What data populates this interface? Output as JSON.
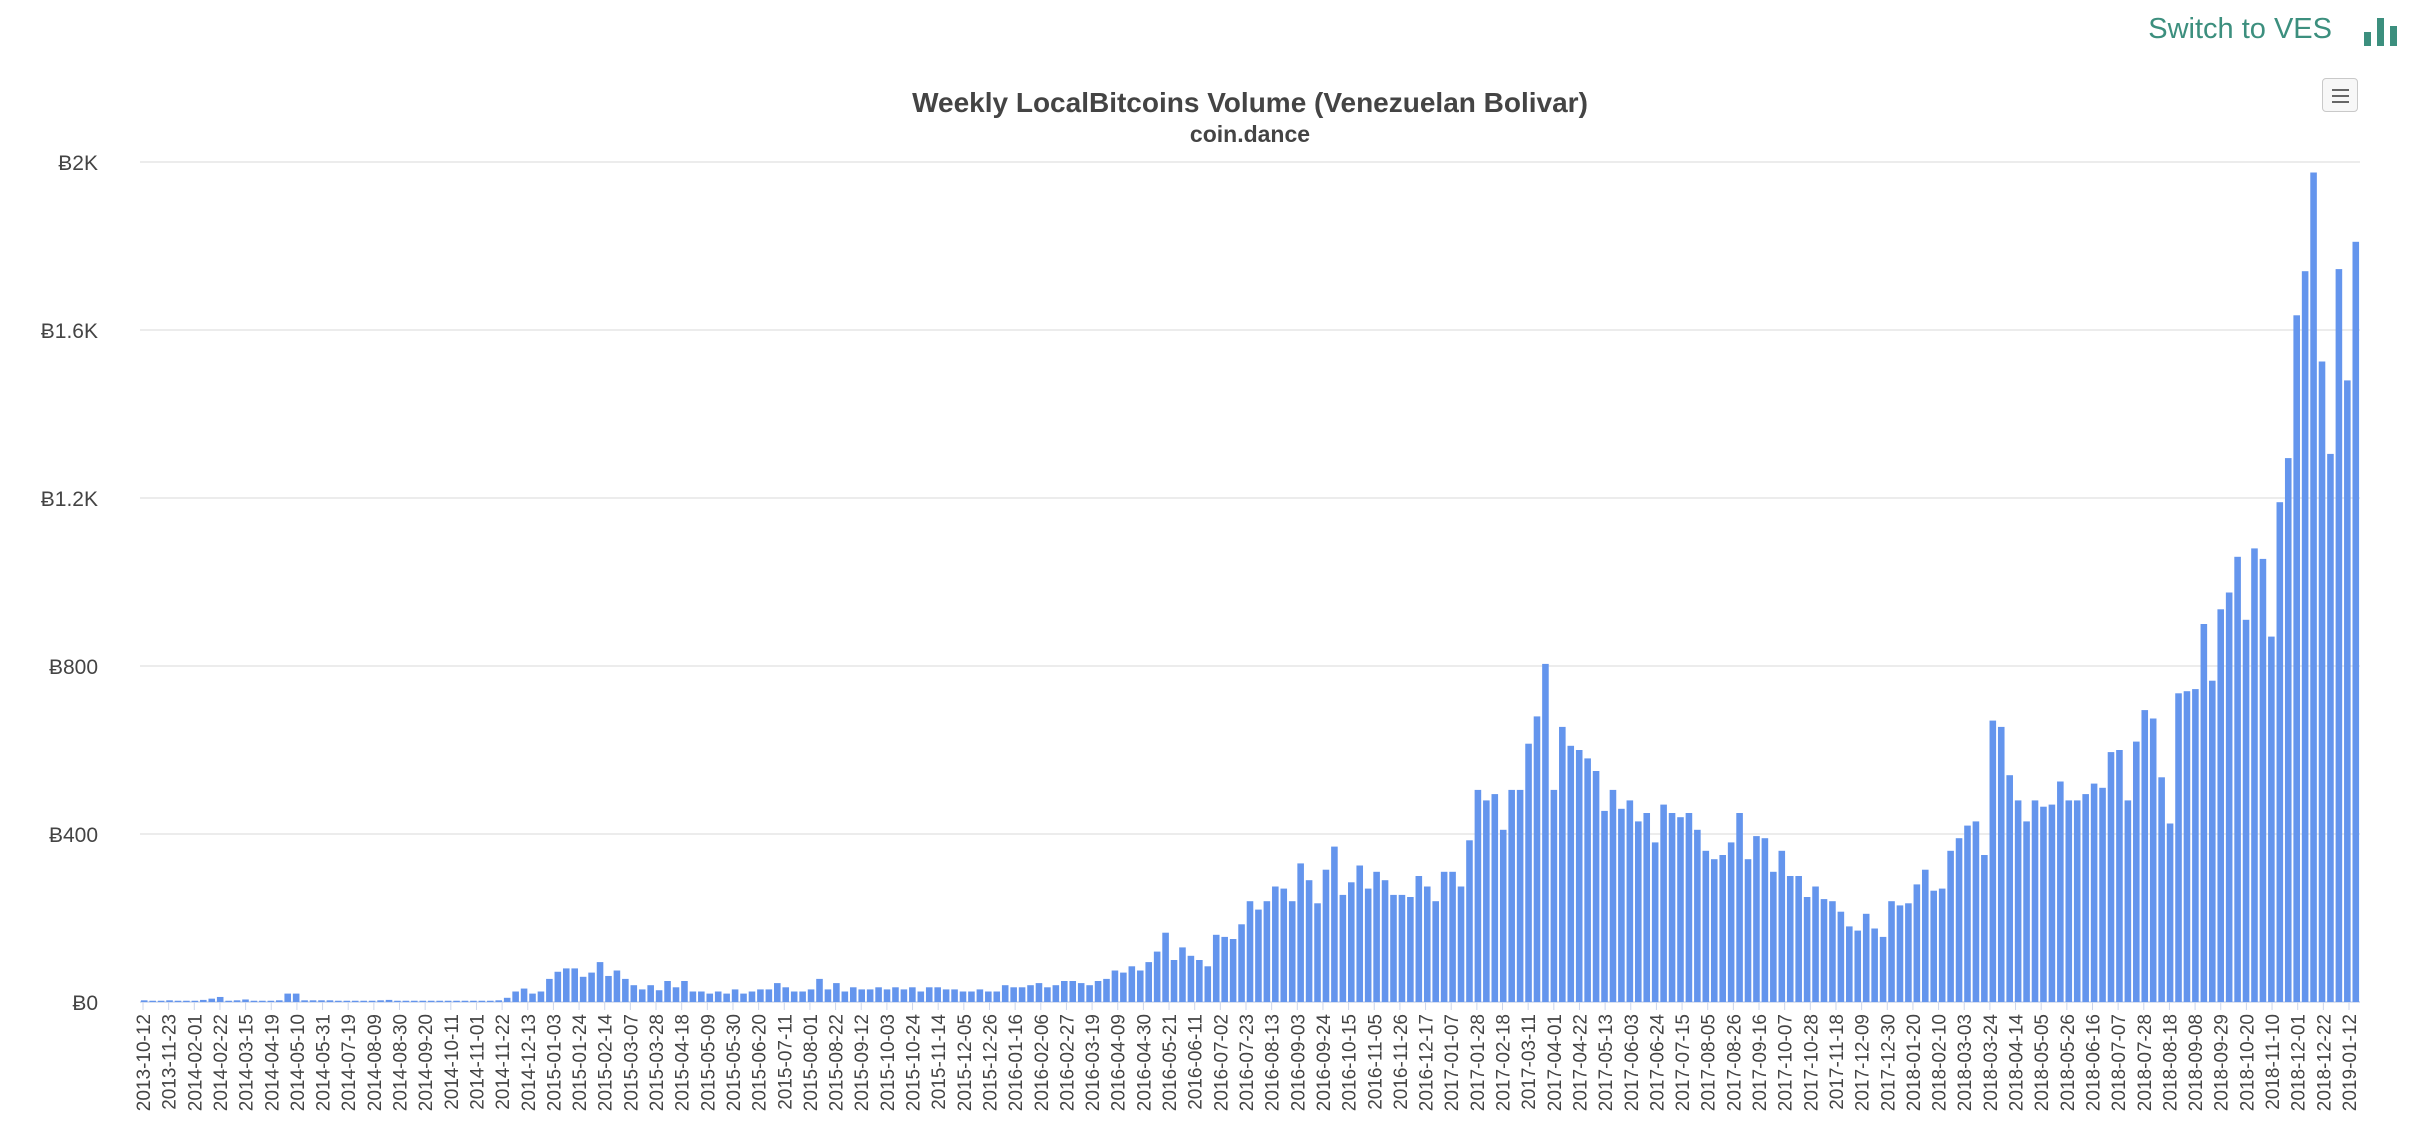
{
  "header": {
    "switch_label": "Switch to VES",
    "switch_icon": "bar-chart-icon",
    "accent_color": "#3c8f7e"
  },
  "chart_menu": {
    "icon": "hamburger-menu-icon"
  },
  "chart_data": {
    "type": "bar",
    "title": "Weekly LocalBitcoins Volume (Venezuelan Bolivar)",
    "subtitle": "coin.dance",
    "xlabel": "",
    "ylabel": "",
    "ylim": [
      0,
      2000
    ],
    "y_ticks": [
      0,
      400,
      800,
      1200,
      1600,
      2000
    ],
    "y_tick_labels": [
      "Ƀ0",
      "Ƀ400",
      "Ƀ800",
      "Ƀ1.2K",
      "Ƀ1.6K",
      "Ƀ2K"
    ],
    "grid": true,
    "bar_color": "#6495ed",
    "x_tick_labels": [
      "2013-10-12",
      "2013-11-23",
      "2014-02-01",
      "2014-02-22",
      "2014-03-15",
      "2014-04-19",
      "2014-05-10",
      "2014-05-31",
      "2014-07-19",
      "2014-08-09",
      "2014-08-30",
      "2014-09-20",
      "2014-10-11",
      "2014-11-01",
      "2014-11-22",
      "2014-12-13",
      "2015-01-03",
      "2015-01-24",
      "2015-02-14",
      "2015-03-07",
      "2015-03-28",
      "2015-04-18",
      "2015-05-09",
      "2015-05-30",
      "2015-06-20",
      "2015-07-11",
      "2015-08-01",
      "2015-08-22",
      "2015-09-12",
      "2015-10-03",
      "2015-10-24",
      "2015-11-14",
      "2015-12-05",
      "2015-12-26",
      "2016-01-16",
      "2016-02-06",
      "2016-02-27",
      "2016-03-19",
      "2016-04-09",
      "2016-04-30",
      "2016-05-21",
      "2016-06-11",
      "2016-07-02",
      "2016-07-23",
      "2016-08-13",
      "2016-09-03",
      "2016-09-24",
      "2016-10-15",
      "2016-11-05",
      "2016-11-26",
      "2016-12-17",
      "2017-01-07",
      "2017-01-28",
      "2017-02-18",
      "2017-03-11",
      "2017-04-01",
      "2017-04-22",
      "2017-05-13",
      "2017-06-03",
      "2017-06-24",
      "2017-07-15",
      "2017-08-05",
      "2017-08-26",
      "2017-09-16",
      "2017-10-07",
      "2017-10-28",
      "2017-11-18",
      "2017-12-09",
      "2017-12-30",
      "2018-01-20",
      "2018-02-10",
      "2018-03-03",
      "2018-03-24",
      "2018-04-14",
      "2018-05-05",
      "2018-05-26",
      "2018-06-16",
      "2018-07-07",
      "2018-07-28",
      "2018-08-18",
      "2018-09-08",
      "2018-09-29",
      "2018-10-20",
      "2018-11-10",
      "2018-12-01",
      "2018-12-22",
      "2019-01-12"
    ],
    "values": [
      4,
      3,
      3,
      4,
      3,
      3,
      3,
      5,
      8,
      12,
      3,
      4,
      6,
      3,
      3,
      3,
      4,
      20,
      20,
      4,
      4,
      4,
      4,
      3,
      3,
      3,
      3,
      3,
      4,
      5,
      3,
      3,
      3,
      3,
      3,
      3,
      3,
      3,
      3,
      3,
      3,
      3,
      4,
      10,
      25,
      32,
      20,
      25,
      55,
      72,
      80,
      80,
      60,
      70,
      95,
      62,
      75,
      55,
      40,
      30,
      40,
      28,
      50,
      35,
      50,
      25,
      25,
      20,
      25,
      20,
      30,
      20,
      25,
      30,
      30,
      45,
      35,
      25,
      25,
      30,
      55,
      30,
      45,
      25,
      35,
      30,
      30,
      35,
      30,
      35,
      30,
      35,
      25,
      35,
      35,
      30,
      30,
      25,
      25,
      30,
      25,
      25,
      40,
      35,
      35,
      40,
      45,
      35,
      40,
      50,
      50,
      45,
      40,
      50,
      55,
      75,
      70,
      85,
      75,
      95,
      120,
      165,
      100,
      130,
      110,
      100,
      85,
      160,
      155,
      150,
      185,
      240,
      220,
      240,
      275,
      270,
      240,
      330,
      290,
      235,
      315,
      370,
      255,
      285,
      325,
      270,
      310,
      290,
      255,
      255,
      250,
      300,
      275,
      240,
      310,
      310,
      275,
      385,
      505,
      480,
      495,
      410,
      505,
      505,
      615,
      680,
      805,
      505,
      655,
      610,
      600,
      580,
      550,
      455,
      505,
      460,
      480,
      430,
      450,
      380,
      470,
      450,
      440,
      450,
      410,
      360,
      340,
      350,
      380,
      450,
      340,
      395,
      390,
      310,
      360,
      300,
      300,
      250,
      275,
      245,
      240,
      215,
      180,
      170,
      210,
      175,
      155,
      240,
      230,
      235,
      280,
      315,
      265,
      270,
      360,
      390,
      420,
      430,
      350,
      670,
      655,
      540,
      480,
      430,
      480,
      465,
      470,
      525,
      480,
      480,
      495,
      520,
      510,
      595,
      600,
      480,
      620,
      695,
      675,
      535,
      425,
      735,
      740,
      745,
      900,
      765,
      935,
      975,
      1060,
      910,
      1080,
      1055,
      870,
      1190,
      1295,
      1635,
      1740,
      1975,
      1525,
      1305,
      1745,
      1480,
      1810
    ]
  }
}
